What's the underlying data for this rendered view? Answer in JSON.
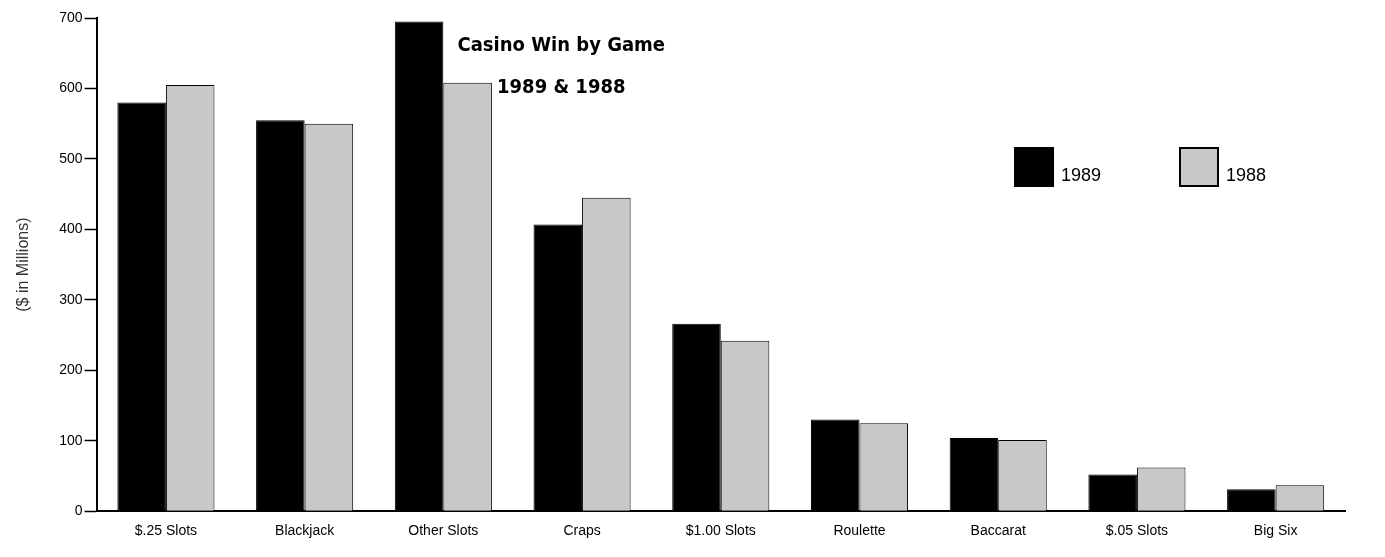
{
  "chart_data": {
    "type": "bar",
    "title": "Casino Win by Game",
    "subtitle": "1989 & 1988",
    "ylabel": "($ in Millions)",
    "categories": [
      "$.25 Slots",
      "Blackjack",
      "Other Slots",
      "Craps",
      "$1.00 Slots",
      "Roulette",
      "Baccarat",
      "$.05 Slots",
      "Big Six"
    ],
    "series": [
      {
        "name": "1989",
        "color": "#000000",
        "values": [
          580,
          555,
          695,
          407,
          266,
          130,
          104,
          52,
          31
        ]
      },
      {
        "name": "1988",
        "color": "#c8c8c8",
        "values": [
          605,
          550,
          608,
          445,
          242,
          125,
          101,
          62,
          37
        ]
      }
    ],
    "ylim": [
      0,
      700
    ],
    "yticks": [
      0,
      100,
      200,
      300,
      400,
      500,
      600,
      700
    ],
    "grid": false,
    "legend": "top right"
  }
}
